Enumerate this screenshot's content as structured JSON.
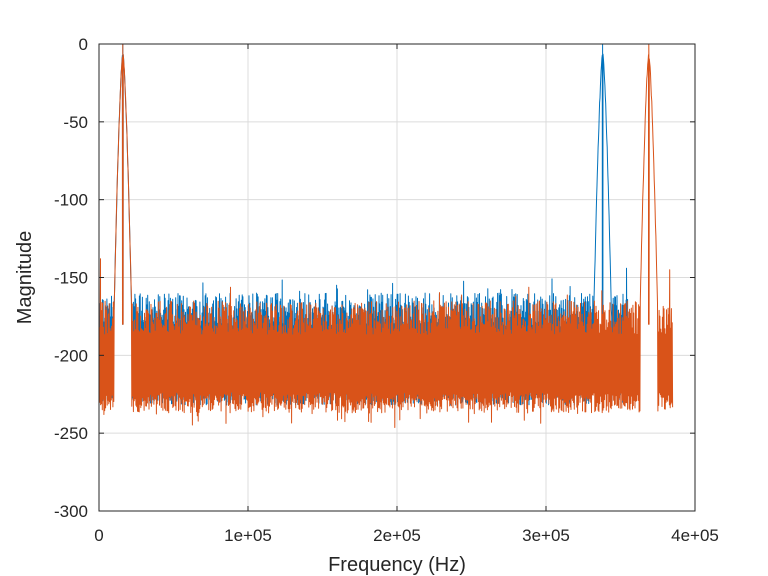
{
  "chart_data": {
    "type": "line",
    "title": "",
    "xlabel": "Frequency (Hz)",
    "ylabel": "Magnitude",
    "xlim": [
      0,
      400000
    ],
    "ylim": [
      -300,
      0
    ],
    "x_ticks": [
      0,
      100000,
      200000,
      300000,
      400000
    ],
    "x_tick_labels": [
      "0",
      "1e+05",
      "2e+05",
      "3e+05",
      "4e+05"
    ],
    "y_ticks": [
      0,
      -50,
      -100,
      -150,
      -200,
      -250,
      -300
    ],
    "y_tick_labels": [
      "0",
      "-50",
      "-100",
      "-150",
      "-200",
      "-250",
      "-300"
    ],
    "grid": true,
    "legend": "none",
    "colors": {
      "series_1": "#0072bd",
      "series_2": "#d95319",
      "axis": "#262626",
      "grid": "#dcdcdc"
    },
    "series": [
      {
        "color": "#0072bd",
        "description_points": {
          "peaks": [
            [
              16000,
              0
            ],
            [
              338000,
              0
            ],
            [
              354000,
              -144
            ]
          ],
          "floor_range": [
            0,
            355000
          ],
          "floor_band": [
            -232,
            -160
          ],
          "hump_center": 16000,
          "hump_top": -185
        }
      },
      {
        "color": "#d95319",
        "description_points": {
          "peaks": [
            [
              16000,
              0
            ],
            [
              369000,
              0
            ],
            [
              383000,
              -145
            ],
            [
              1000,
              -138
            ]
          ],
          "floor_range": [
            0,
            385000
          ],
          "floor_band": [
            -235,
            -165
          ],
          "dips_min": -252
        }
      }
    ]
  }
}
